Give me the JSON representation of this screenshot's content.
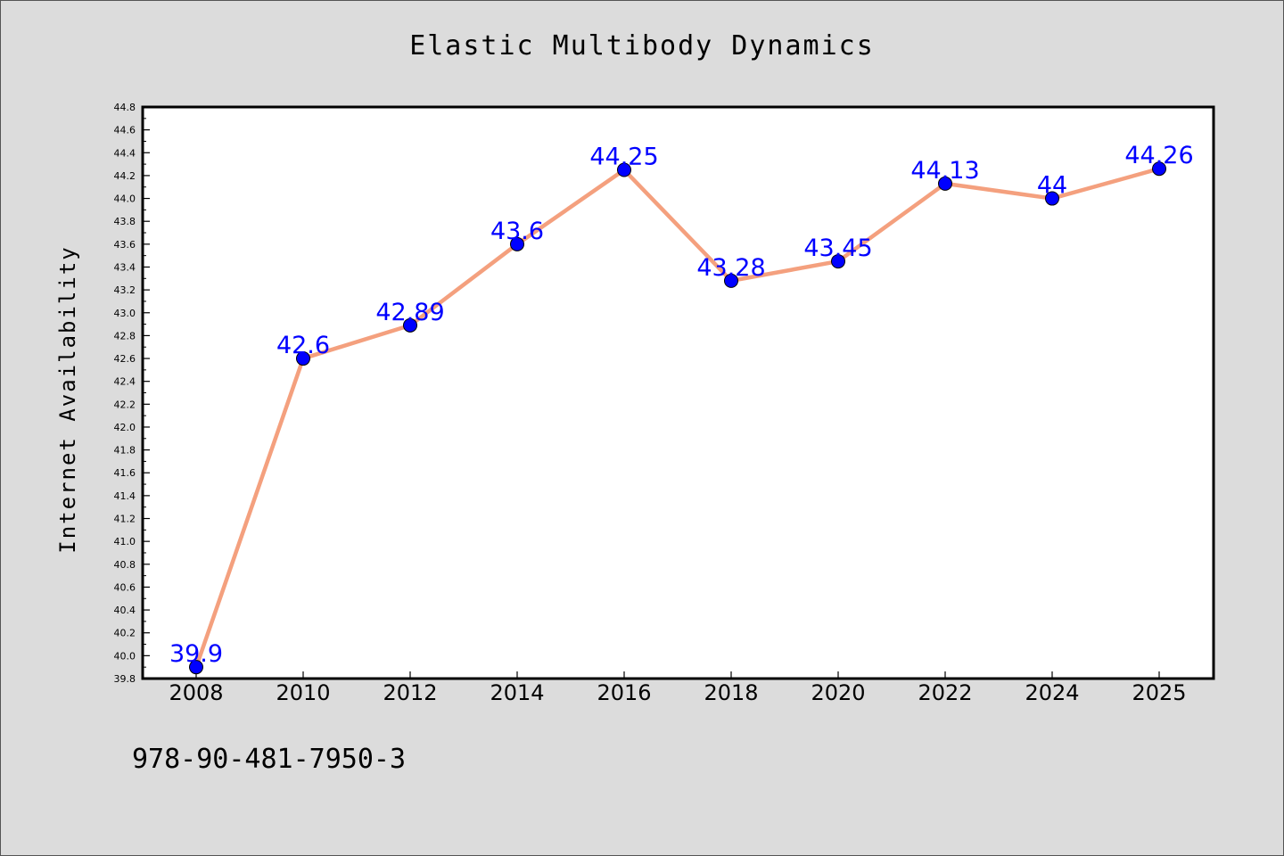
{
  "chart_data": {
    "type": "line",
    "title": "Elastic Multibody Dynamics",
    "xlabel": "",
    "ylabel": "Internet Availability",
    "categories": [
      "2008",
      "2010",
      "2012",
      "2014",
      "2016",
      "2018",
      "2020",
      "2022",
      "2024",
      "2025"
    ],
    "series": [
      {
        "values": [
          39.9,
          42.6,
          42.89,
          43.6,
          44.25,
          43.28,
          43.45,
          44.13,
          44.0,
          44.26
        ],
        "data_labels": [
          "39.9",
          "42.6",
          "42.89",
          "43.6",
          "44.25",
          "43.28",
          "43.45",
          "44.13",
          "44",
          "44.26"
        ]
      }
    ],
    "ylim": [
      39.8,
      44.8
    ],
    "y_ticks": [
      "39.8",
      "40.0",
      "40.2",
      "40.4",
      "40.6",
      "40.8",
      "41.0",
      "41.2",
      "41.4",
      "41.6",
      "41.8",
      "42.0",
      "42.2",
      "42.4",
      "42.6",
      "42.8",
      "43.0",
      "43.2",
      "43.4",
      "43.6",
      "43.8",
      "44.0",
      "44.2",
      "44.4",
      "44.6",
      "44.8"
    ],
    "grid": false,
    "legend": "none",
    "colors": {
      "line": "#f4a07e",
      "marker": "#0000ff",
      "data_label": "#0000ff",
      "plot_background": "#ffffff",
      "figure_background": "#dcdcdc"
    }
  },
  "footer": {
    "isbn": "978-90-481-7950-3"
  }
}
